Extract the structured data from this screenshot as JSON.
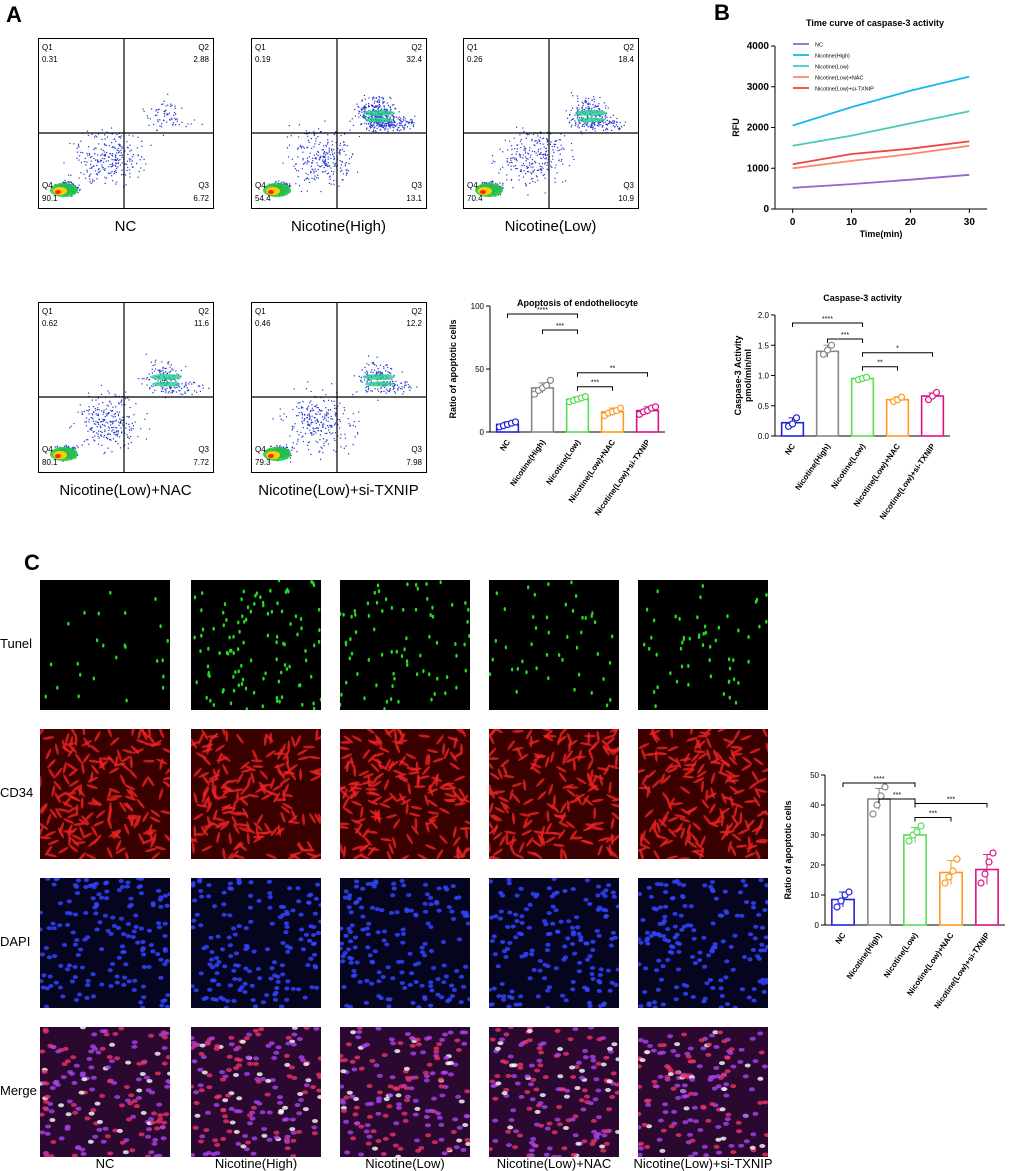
{
  "panels": {
    "a": "A",
    "b": "B",
    "c": "C"
  },
  "flow": [
    {
      "label": "NC",
      "q1": "Q1",
      "q1v": "0.31",
      "q2": "Q2",
      "q2v": "2.88",
      "q3": "Q3",
      "q3v": "6.72",
      "q4": "Q4",
      "q4v": "90.1"
    },
    {
      "label": "Nicotine(High)",
      "q1": "Q1",
      "q1v": "0.19",
      "q2": "Q2",
      "q2v": "32.4",
      "q3": "Q3",
      "q3v": "13.1",
      "q4": "Q4",
      "q4v": "54.4"
    },
    {
      "label": "Nicotine(Low)",
      "q1": "Q1",
      "q1v": "0.26",
      "q2": "Q2",
      "q2v": "18.4",
      "q3": "Q3",
      "q3v": "10.9",
      "q4": "Q4",
      "q4v": "70.4"
    },
    {
      "label": "Nicotine(Low)+NAC",
      "q1": "Q1",
      "q1v": "0.62",
      "q2": "Q2",
      "q2v": "11.6",
      "q3": "Q3",
      "q3v": "7.72",
      "q4": "Q4",
      "q4v": "80.1"
    },
    {
      "label": "Nicotine(Low)+si-TXNIP",
      "q1": "Q1",
      "q1v": "0.46",
      "q2": "Q2",
      "q2v": "12.2",
      "q3": "Q3",
      "q3v": "7.98",
      "q4": "Q4",
      "q4v": "79.3"
    }
  ],
  "micro": {
    "rows": [
      "Tunel",
      "CD34",
      "DAPI",
      "Merge"
    ],
    "cols": [
      "NC",
      "Nicotine(High)",
      "Nicotine(Low)",
      "Nicotine(Low)+NAC",
      "Nicotine(Low)+si-TXNIP"
    ],
    "colors": {
      "Tunel": "#22dd22",
      "CD34": "#ee2222",
      "DAPI": "#3344ff",
      "Merge": "#cc33aa"
    }
  },
  "chart_data": [
    {
      "id": "apoptosis-flow",
      "type": "bar",
      "title": "Apoptosis of endotheliocyte",
      "ylabel": "Ratio of apoptotic cells",
      "ylim": [
        0,
        100
      ],
      "yticks": [
        "0",
        "50",
        "100"
      ],
      "categories": [
        "NC",
        "Nicotine(High)",
        "Nicotine(Low)",
        "Nicotine(Low)+NAC",
        "Nicotine(Low)+si-TXNIP"
      ],
      "values": [
        6,
        35,
        26,
        16,
        17
      ],
      "errors": [
        2,
        4,
        2,
        3,
        3
      ],
      "points": [
        [
          4,
          5,
          6,
          7,
          8
        ],
        [
          30,
          33,
          35,
          37,
          41
        ],
        [
          24,
          25,
          26,
          27,
          28
        ],
        [
          13,
          15,
          16,
          17,
          19
        ],
        [
          14,
          16,
          17,
          19,
          20
        ]
      ],
      "colors": [
        "#2222dd",
        "#888888",
        "#55dd55",
        "#ff9922",
        "#dd1188"
      ],
      "brackets": [
        {
          "from": 0,
          "to": 2,
          "label": "****"
        },
        {
          "from": 1,
          "to": 2,
          "label": "***"
        },
        {
          "from": 2,
          "to": 3,
          "label": "***"
        },
        {
          "from": 2,
          "to": 4,
          "label": "**"
        }
      ]
    },
    {
      "id": "caspase-time",
      "type": "line",
      "title": "Time curve of caspase-3 activity",
      "xlabel": "Time(min)",
      "ylabel": "RFU",
      "x": [
        0,
        10,
        20,
        30
      ],
      "xlim": [
        -3,
        33
      ],
      "ylim": [
        0,
        4000
      ],
      "yticks": [
        "0",
        "1000",
        "2000",
        "3000",
        "4000"
      ],
      "xticks": [
        "0",
        "10",
        "20",
        "30"
      ],
      "series": [
        {
          "name": "NC",
          "color": "#9966cc",
          "values": [
            520,
            610,
            720,
            840
          ]
        },
        {
          "name": "Nicotine(High)",
          "color": "#11bbee",
          "values": [
            2050,
            2500,
            2900,
            3250
          ]
        },
        {
          "name": "Nicotine(Low)",
          "color": "#44ccbb",
          "values": [
            1550,
            1800,
            2100,
            2400
          ]
        },
        {
          "name": "Nicotine(Low)+NAC",
          "color": "#ff8866",
          "values": [
            1000,
            1180,
            1350,
            1550
          ]
        },
        {
          "name": "Nicotine(Low)+si-TXNIP",
          "color": "#ee4444",
          "values": [
            1100,
            1350,
            1480,
            1660
          ]
        }
      ],
      "legend": "top-left"
    },
    {
      "id": "caspase-activity",
      "type": "bar",
      "title": "Caspase-3 activity",
      "ylabel": "Caspase-3 Activity pmol/min/ml",
      "ylabel_lines": [
        "Caspase-3 Activity",
        "pmol/min/ml"
      ],
      "ylim": [
        0,
        2.0
      ],
      "yticks": [
        "0.0",
        "0.5",
        "1.0",
        "1.5",
        "2.0"
      ],
      "categories": [
        "NC",
        "Nicotine(High)",
        "Nicotine(Low)",
        "Nicotine(Low)+NAC",
        "Nicotine(Low)+si-TXNIP"
      ],
      "values": [
        0.22,
        1.4,
        0.95,
        0.6,
        0.66
      ],
      "errors": [
        0.08,
        0.1,
        0.03,
        0.05,
        0.05
      ],
      "points": [
        [
          0.16,
          0.2,
          0.3
        ],
        [
          1.35,
          1.42,
          1.5
        ],
        [
          0.93,
          0.95,
          0.97
        ],
        [
          0.57,
          0.6,
          0.64
        ],
        [
          0.6,
          0.66,
          0.72
        ]
      ],
      "colors": [
        "#2222dd",
        "#888888",
        "#55dd55",
        "#ff9922",
        "#dd1188"
      ],
      "brackets": [
        {
          "from": 0,
          "to": 2,
          "label": "****"
        },
        {
          "from": 1,
          "to": 2,
          "label": "***"
        },
        {
          "from": 2,
          "to": 3,
          "label": "**"
        },
        {
          "from": 2,
          "to": 4,
          "label": "*"
        }
      ]
    },
    {
      "id": "tunel-ratio",
      "type": "bar",
      "title": "",
      "ylabel": "Ratio of apoptotic cells",
      "ylim": [
        0,
        50
      ],
      "yticks": [
        "0",
        "10",
        "20",
        "30",
        "40",
        "50"
      ],
      "categories": [
        "NC",
        "Nicotine(High)",
        "Nicotine(Low)",
        "Nicotine(Low)+NAC",
        "Nicotine(Low)+si-TXNIP"
      ],
      "values": [
        8.5,
        42,
        30,
        17.5,
        18.5
      ],
      "errors": [
        2.5,
        3.5,
        2.5,
        4,
        5
      ],
      "points": [
        [
          6,
          8,
          10,
          11
        ],
        [
          37,
          40,
          43,
          46
        ],
        [
          28,
          30,
          31,
          33
        ],
        [
          14,
          16,
          18,
          22
        ],
        [
          14,
          17,
          21,
          24
        ]
      ],
      "colors": [
        "#2222dd",
        "#888888",
        "#55dd55",
        "#ff9922",
        "#dd1188"
      ],
      "brackets": [
        {
          "from": 0,
          "to": 2,
          "label": "****"
        },
        {
          "from": 1,
          "to": 2,
          "label": "***"
        },
        {
          "from": 2,
          "to": 3,
          "label": "***"
        },
        {
          "from": 2,
          "to": 4,
          "label": "***"
        }
      ]
    }
  ]
}
